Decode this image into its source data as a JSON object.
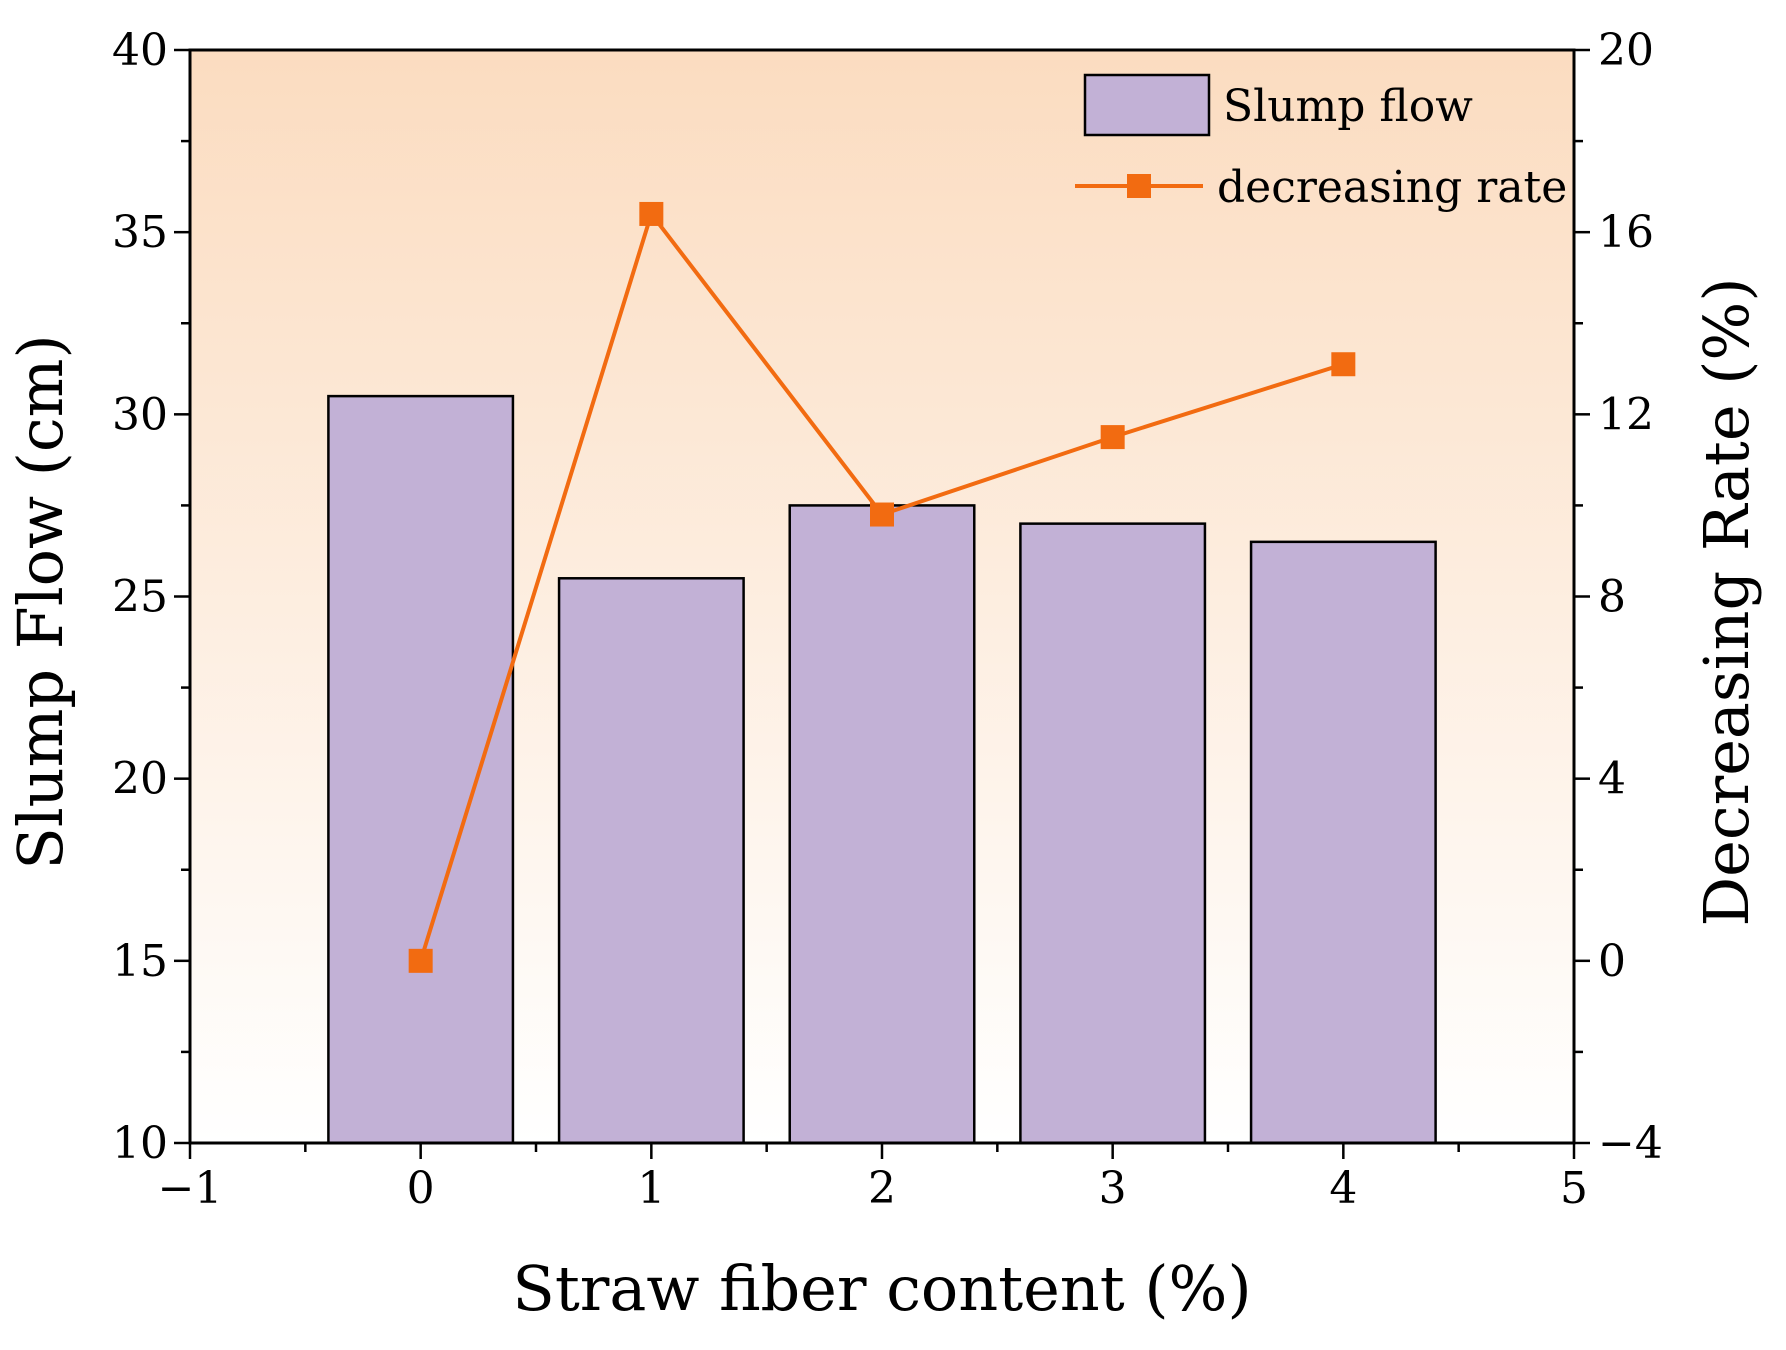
{
  "chart_data": {
    "type": "bar+line",
    "xlabel": "Straw fiber content (%)",
    "ylabel": "Slump Flow (cm)",
    "y2label": "Decreasing Rate (%)",
    "xlim": [
      -1,
      5
    ],
    "xticks": [
      -1,
      0,
      1,
      2,
      3,
      4,
      5
    ],
    "xtick_labels": [
      "−1",
      "0",
      "1",
      "2",
      "3",
      "4",
      "5"
    ],
    "ylim": [
      10,
      40
    ],
    "yticks": [
      10,
      15,
      20,
      25,
      30,
      35,
      40
    ],
    "ytick_labels": [
      "10",
      "15",
      "20",
      "25",
      "30",
      "35",
      "40"
    ],
    "y2lim": [
      -4,
      20
    ],
    "y2ticks": [
      -4,
      0,
      4,
      8,
      12,
      16,
      20
    ],
    "y2tick_labels": [
      "−4",
      "0",
      "4",
      "8",
      "12",
      "16",
      "20"
    ],
    "x": [
      0,
      1,
      2,
      3,
      4
    ],
    "series": [
      {
        "name": "Slump flow",
        "kind": "bar",
        "axis": "left",
        "values": [
          30.5,
          25.5,
          27.5,
          27.0,
          26.5
        ],
        "color": "#c2b1d6"
      },
      {
        "name": "decreasing rate",
        "kind": "line",
        "axis": "right",
        "values": [
          0,
          16.4,
          9.8,
          11.5,
          13.1
        ],
        "color": "#f26b11"
      }
    ],
    "legend": "top-right",
    "background_gradient": [
      "#fbdcc0",
      "#ffffff"
    ]
  }
}
